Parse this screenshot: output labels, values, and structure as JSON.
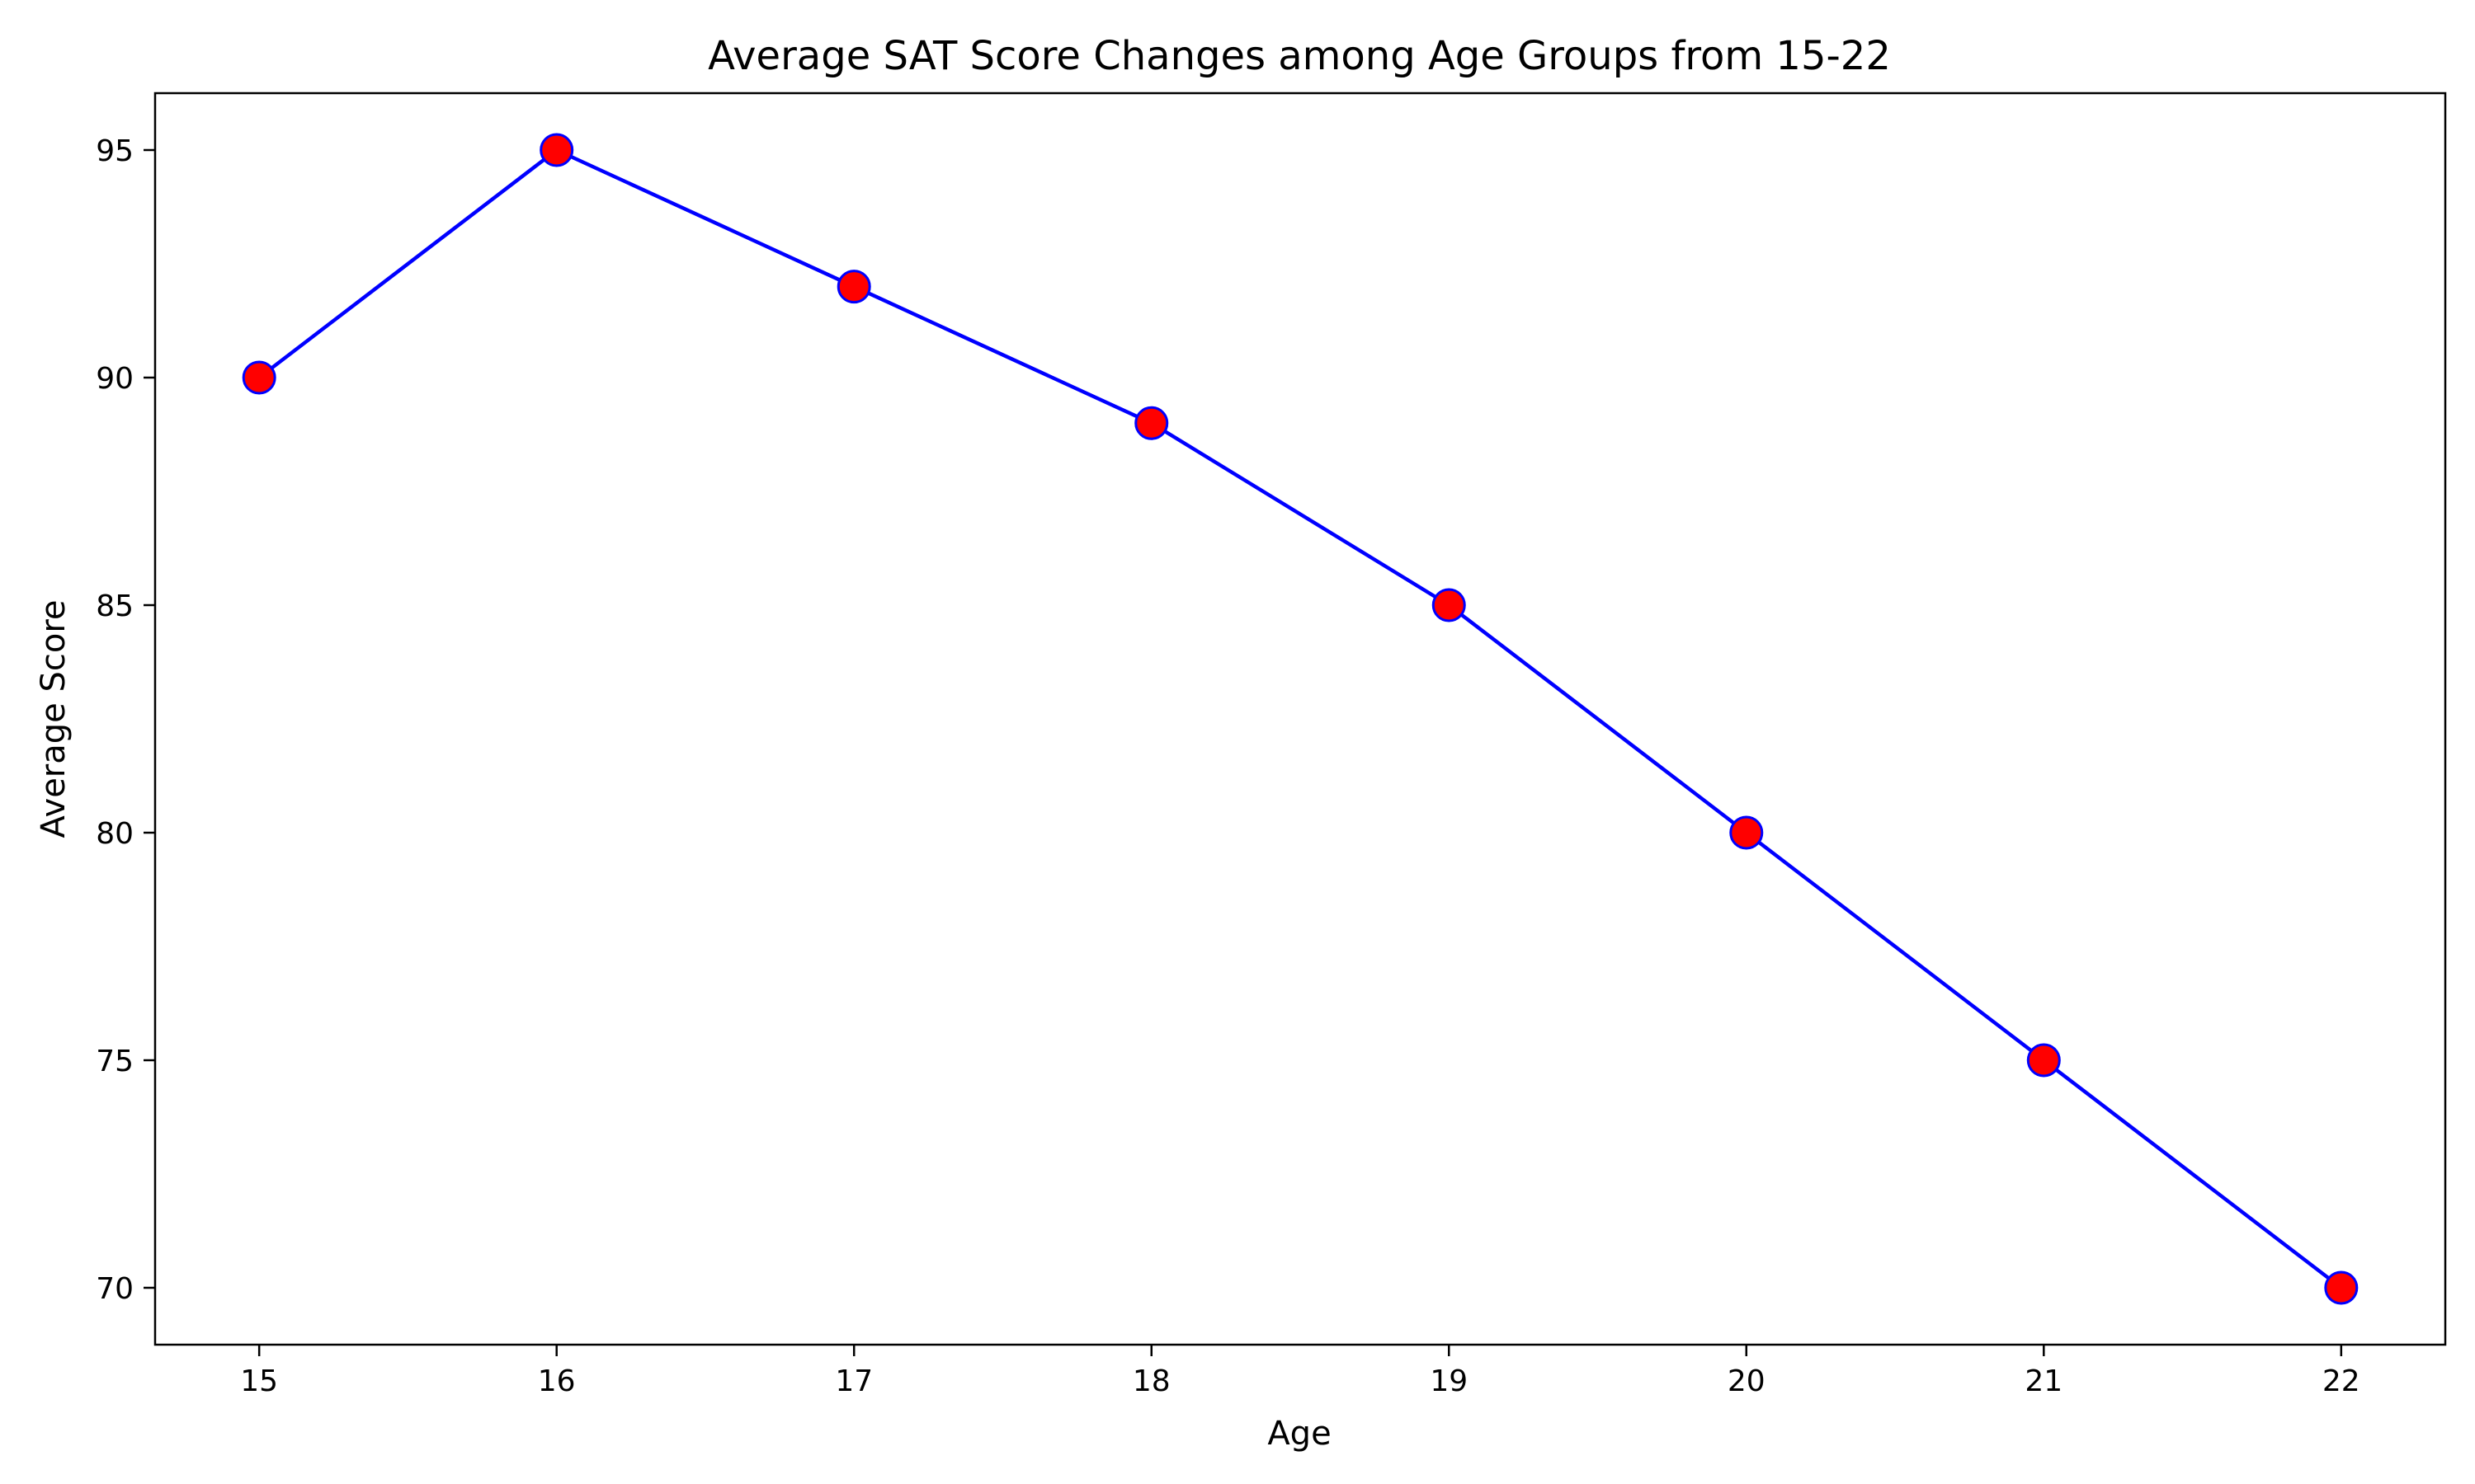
{
  "chart_data": {
    "type": "line",
    "title": "Average SAT Score Changes among Age Groups from 15-22",
    "xlabel": "Age",
    "ylabel": "Average Score",
    "x": [
      15,
      16,
      17,
      18,
      19,
      20,
      21,
      22
    ],
    "series": [
      {
        "values": [
          90,
          95,
          92,
          89,
          85,
          80,
          75,
          70
        ]
      }
    ],
    "xlim": [
      14.65,
      22.35
    ],
    "ylim": [
      68.75,
      96.25
    ],
    "xticks": [
      "15",
      "16",
      "17",
      "18",
      "19",
      "20",
      "21",
      "22"
    ],
    "yticks": [
      "70",
      "75",
      "80",
      "85",
      "90",
      "95"
    ],
    "grid": false,
    "legend": "none",
    "colors": {
      "line": "#0000ff",
      "marker_fill": "#ff0000",
      "marker_edge": "#0000ff",
      "axes": "#000000",
      "background": "#ffffff"
    }
  }
}
